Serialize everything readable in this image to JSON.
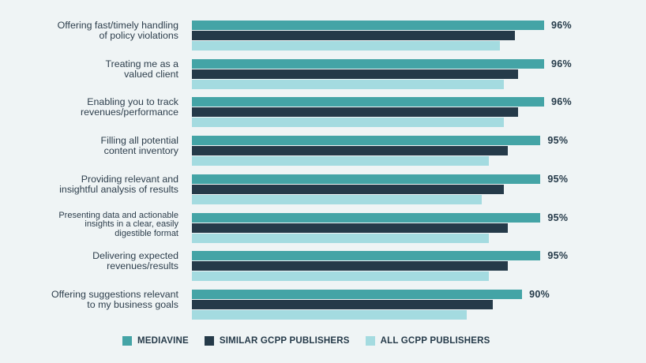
{
  "chart_data": {
    "type": "bar",
    "orientation": "horizontal",
    "title": "",
    "xlabel": "",
    "ylabel": "",
    "xlim": [
      0,
      100
    ],
    "grid": false,
    "legend_position": "bottom",
    "categories": [
      "Offering fast/timely handling of policy violations",
      "Treating me as a valued client",
      "Enabling you to track revenues/performance",
      "Filling all potential content inventory",
      "Providing relevant and insightful analysis of results",
      "Presenting data and actionable insights in a clear, easily digestible format",
      "Delivering expected revenues/results",
      "Offering suggestions relevant to my business goals"
    ],
    "series": [
      {
        "name": "MEDIAVINE",
        "color": "#44a4a6",
        "values": [
          96,
          96,
          96,
          95,
          95,
          95,
          95,
          90
        ],
        "labeled": true
      },
      {
        "name": "SIMILAR GCPP PUBLISHERS",
        "color": "#253a49",
        "values": [
          88,
          89,
          89,
          86,
          85,
          86,
          86,
          82
        ],
        "labeled": false
      },
      {
        "name": "ALL GCPP PUBLISHERS",
        "color": "#a4dbe0",
        "values": [
          84,
          85,
          85,
          81,
          79,
          81,
          81,
          75
        ],
        "labeled": false
      }
    ]
  },
  "groups": [
    {
      "label_lines": [
        "Offering fast/timely handling",
        "of policy violations"
      ],
      "value_label": "96%"
    },
    {
      "label_lines": [
        "Treating me as a",
        "valued client"
      ],
      "value_label": "96%"
    },
    {
      "label_lines": [
        "Enabling you to track",
        "revenues/performance"
      ],
      "value_label": "96%"
    },
    {
      "label_lines": [
        "Filling all potential",
        "content inventory"
      ],
      "value_label": "95%"
    },
    {
      "label_lines": [
        "Providing relevant and",
        "insightful analysis of results"
      ],
      "value_label": "95%"
    },
    {
      "label_lines": [
        "Presenting data and actionable",
        "insights in a clear, easily",
        "digestible format"
      ],
      "value_label": "95%"
    },
    {
      "label_lines": [
        "Delivering expected",
        "revenues/results"
      ],
      "value_label": "95%"
    },
    {
      "label_lines": [
        "Offering suggestions relevant",
        "to my business goals"
      ],
      "value_label": "90%"
    }
  ],
  "legend": [
    {
      "label": "MEDIAVINE",
      "color": "#44a4a6"
    },
    {
      "label": "SIMILAR GCPP PUBLISHERS",
      "color": "#253a49"
    },
    {
      "label": "ALL GCPP PUBLISHERS",
      "color": "#a4dbe0"
    }
  ],
  "colors": {
    "background": "#eff4f5",
    "text": "#2d3e4c"
  }
}
